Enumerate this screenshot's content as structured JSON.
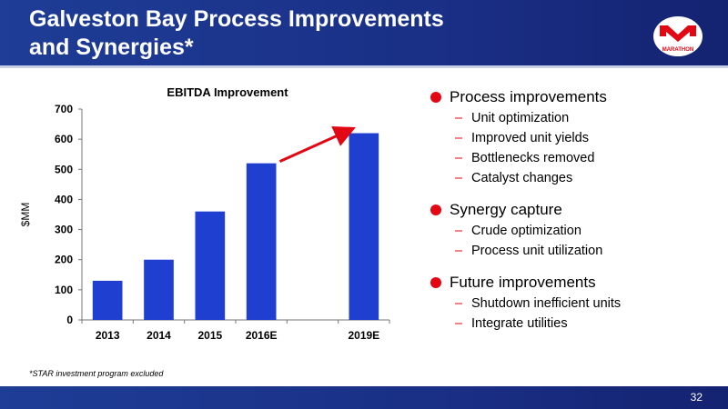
{
  "slide": {
    "title": "Galveston Bay Process Improvements\nand Synergies*",
    "footnote": "*STAR investment program excluded",
    "page_number": "32",
    "logo_text": "MARATHON",
    "colors": {
      "brand_blue": "#1a2f86",
      "bar_blue": "#1f3fd0",
      "accent_red": "#e30613"
    }
  },
  "bullets": [
    {
      "label": "Process improvements",
      "items": [
        "Unit optimization",
        "Improved unit yields",
        "Bottlenecks removed",
        "Catalyst changes"
      ]
    },
    {
      "label": "Synergy capture",
      "items": [
        "Crude optimization",
        "Process unit utilization"
      ]
    },
    {
      "label": "Future improvements",
      "items": [
        "Shutdown inefficient units",
        "Integrate utilities"
      ]
    }
  ],
  "chart_data": {
    "type": "bar",
    "title": "EBITDA Improvement",
    "ylabel": "$MM",
    "xlabel": "",
    "categories": [
      "2013",
      "2014",
      "2015",
      "2016E",
      "",
      "2019E"
    ],
    "values": [
      130,
      200,
      360,
      520,
      null,
      620
    ],
    "ylim": [
      0,
      700
    ],
    "yticks": [
      0,
      100,
      200,
      300,
      400,
      500,
      600,
      700
    ],
    "grid": false,
    "annotations": [
      {
        "type": "arrow",
        "from": "2016E",
        "to": "2019E",
        "color": "#e30613"
      }
    ]
  }
}
